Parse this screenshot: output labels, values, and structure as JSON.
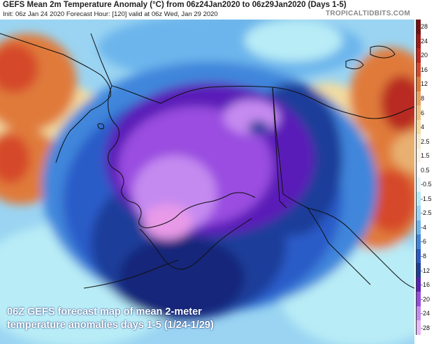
{
  "header": {
    "title": "GEFS Mean 2m Temperature Anomaly (°C) from 06z24Jan2020 to 06z29Jan2020 (Days 1-5)",
    "subtitle": "Init: 06z Jan 24 2020   Forecast Hour: [120]   valid at 06z Wed, Jan 29 2020",
    "brand": "TROPICALTIDBITS.COM"
  },
  "colors": {
    "deep_purple": "#5a1fb8",
    "violet": "#9a4ee0",
    "light_violet": "#c58af0",
    "pink": "#e89ae8",
    "dark_navy": "#16287a",
    "navy": "#1e3e9a",
    "royal_blue": "#2a5bc8",
    "medium_blue": "#3f86db",
    "light_blue": "#6cb5ec",
    "sky_blue": "#9ad4f2",
    "cyan": "#b8ecf6",
    "pale_yellow": "#f3dca0",
    "tan": "#e8b070",
    "orange": "#e07a3a",
    "red_orange": "#d54a2c",
    "red": "#b82a22",
    "coast_line": "#101010"
  },
  "legend": {
    "labels": [
      "28",
      "24",
      "20",
      "16",
      "12",
      "8",
      "6",
      "4",
      "2.5",
      "1.5",
      "0.5",
      "-0.5",
      "-1.5",
      "-2.5",
      "-4",
      "-6",
      "-8",
      "-12",
      "-16",
      "-20",
      "-24",
      "-28"
    ],
    "swatches": [
      "#7a1010",
      "#a01818",
      "#c02820",
      "#d54a2c",
      "#e07a3a",
      "#e8a060",
      "#efc080",
      "#f3dca0",
      "#f7ead0",
      "#faf4e6",
      "#ffffff",
      "#e4f8fc",
      "#b8ecf6",
      "#9ad4f2",
      "#6cb5ec",
      "#3f86db",
      "#2a5bc8",
      "#1e3e9a",
      "#5a1fb8",
      "#9a4ee0",
      "#c58af0",
      "#e8b8f4"
    ]
  },
  "caption": {
    "line1": "06Z GEFS forecast map of mean 2-meter",
    "line2": "temperature anomalies days 1-5 (1/24-1/29)"
  }
}
